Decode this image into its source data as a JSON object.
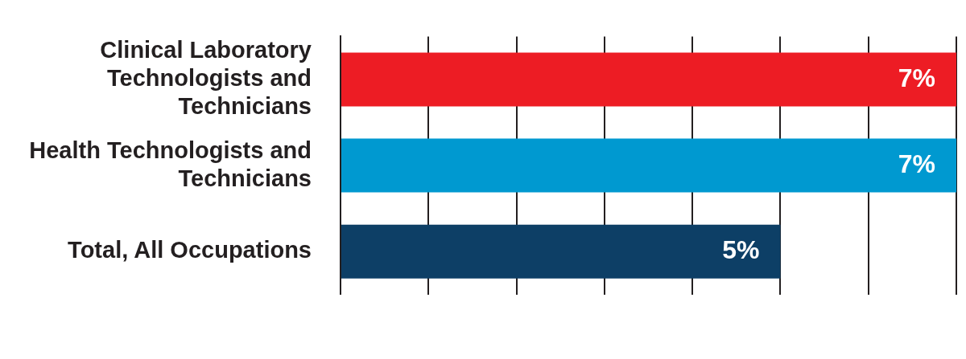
{
  "chart_data": {
    "type": "bar",
    "orientation": "horizontal",
    "categories": [
      "Clinical Laboratory Technologists and Technicians",
      "Health Technologists and Technicians",
      "Total, All Occupations"
    ],
    "values": [
      7,
      7,
      5
    ],
    "colors": [
      "#ed1c24",
      "#0099d0",
      "#0d3f66"
    ],
    "xlim": [
      0,
      7
    ],
    "xticks": [
      {
        "value": 0,
        "label": null
      },
      {
        "value": 1,
        "label": null
      },
      {
        "value": 2,
        "label": null
      },
      {
        "value": 3,
        "label": null
      },
      {
        "value": 4,
        "label": null
      },
      {
        "value": 5,
        "label": null
      },
      {
        "value": 6,
        "label": null
      },
      {
        "value": 7,
        "label": null
      }
    ],
    "value_labels": [
      "7%",
      "7%",
      "5%"
    ],
    "grid": "x",
    "legend": false,
    "tick_labels": "y"
  }
}
